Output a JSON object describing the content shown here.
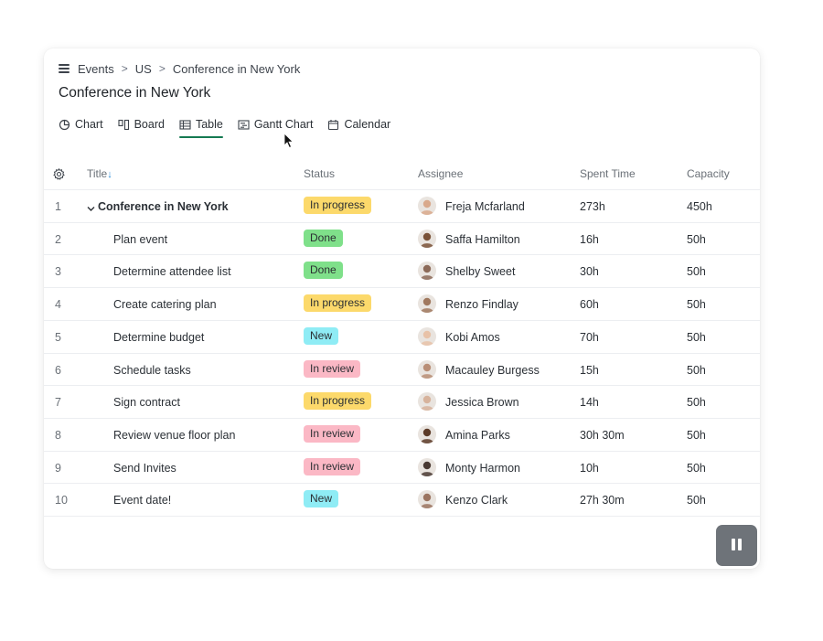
{
  "breadcrumb": {
    "items": [
      "Events",
      "US",
      "Conference in New York"
    ],
    "separator": ">"
  },
  "page": {
    "title": "Conference in New York"
  },
  "tabs": [
    {
      "label": "Chart",
      "icon": "pie-chart-icon"
    },
    {
      "label": "Board",
      "icon": "board-icon"
    },
    {
      "label": "Table",
      "icon": "table-icon",
      "active": true
    },
    {
      "label": "Gantt Chart",
      "icon": "gantt-icon"
    },
    {
      "label": "Calendar",
      "icon": "calendar-icon"
    }
  ],
  "table": {
    "columns": {
      "title": "Title",
      "status": "Status",
      "assignee": "Assignee",
      "spent": "Spent Time",
      "capacity": "Capacity"
    },
    "sort_indicator": "↓",
    "rows": [
      {
        "num": "1",
        "title": "Conference in New York",
        "parent": true,
        "status": "In progress",
        "assignee": "Freja Mcfarland",
        "spent": "273h",
        "capacity": "450h"
      },
      {
        "num": "2",
        "title": "Plan event",
        "status": "Done",
        "assignee": "Saffa Hamilton",
        "spent": "16h",
        "capacity": "50h"
      },
      {
        "num": "3",
        "title": "Determine attendee list",
        "status": "Done",
        "assignee": "Shelby Sweet",
        "spent": "30h",
        "capacity": "50h"
      },
      {
        "num": "4",
        "title": "Create catering plan",
        "status": "In progress",
        "assignee": "Renzo Findlay",
        "spent": "60h",
        "capacity": "50h"
      },
      {
        "num": "5",
        "title": "Determine budget",
        "status": "New",
        "assignee": "Kobi Amos",
        "spent": "70h",
        "capacity": "50h"
      },
      {
        "num": "6",
        "title": "Schedule tasks",
        "status": "In review",
        "assignee": "Macauley Burgess",
        "spent": "15h",
        "capacity": "50h"
      },
      {
        "num": "7",
        "title": "Sign contract",
        "status": "In progress",
        "assignee": "Jessica Brown",
        "spent": "14h",
        "capacity": "50h"
      },
      {
        "num": "8",
        "title": "Review venue floor plan",
        "status": "In review",
        "assignee": "Amina Parks",
        "spent": "30h 30m",
        "capacity": "50h"
      },
      {
        "num": "9",
        "title": "Send Invites",
        "status": "In review",
        "assignee": "Monty Harmon",
        "spent": "10h",
        "capacity": "50h"
      },
      {
        "num": "10",
        "title": "Event date!",
        "status": "New",
        "assignee": "Kenzo Clark",
        "spent": "27h 30m",
        "capacity": "50h"
      }
    ]
  },
  "status_colors": {
    "In progress": "#fcd96b",
    "Done": "#7fe08a",
    "New": "#8fecf5",
    "In review": "#fbb8c5"
  },
  "avatar_colors": [
    "#d9a98c",
    "#7a5238",
    "#8c6a58",
    "#a0785e",
    "#e8c2a8",
    "#b98e76",
    "#d7b39c",
    "#5c3b28",
    "#4a3a33",
    "#9b7460"
  ],
  "controls": {
    "pause_icon": "pause-icon",
    "settings_icon": "gear-icon"
  }
}
